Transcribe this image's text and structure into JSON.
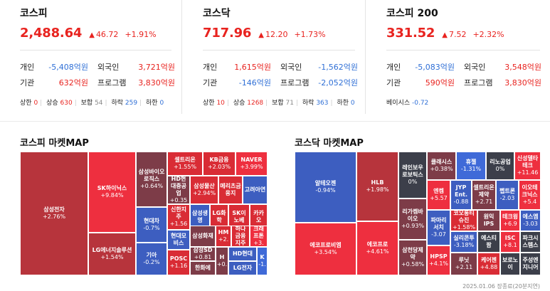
{
  "indices": [
    {
      "name": "코스피",
      "value": "2,488.64",
      "change": "46.72",
      "change_tri": "▲",
      "pct": "+1.91%",
      "flow": [
        {
          "label": "개인",
          "value": "-5,408억원",
          "label2": "외국인",
          "value2": "3,721억원"
        },
        {
          "label": "기관",
          "value": "632억원",
          "label2": "프로그램",
          "value2": "3,830억원"
        }
      ],
      "stats": {
        "upper_label": "상한",
        "upper": "0",
        "rise_label": "상승",
        "rise": "630",
        "flat_label": "보합",
        "flat": "54",
        "fall_label": "하락",
        "fall": "259",
        "lower_label": "하한",
        "lower": "0"
      }
    },
    {
      "name": "코스닥",
      "value": "717.96",
      "change": "12.20",
      "change_tri": "▲",
      "pct": "+1.73%",
      "flow": [
        {
          "label": "개인",
          "value": "1,615억원",
          "label2": "외국인",
          "value2": "-1,562억원"
        },
        {
          "label": "기관",
          "value": "-146억원",
          "label2": "프로그램",
          "value2": "-2,052억원"
        }
      ],
      "stats": {
        "upper_label": "상한",
        "upper": "10",
        "rise_label": "상승",
        "rise": "1268",
        "flat_label": "보합",
        "flat": "71",
        "fall_label": "하락",
        "fall": "363",
        "lower_label": "하한",
        "lower": "0"
      }
    },
    {
      "name": "코스피 200",
      "value": "331.52",
      "change": "7.52",
      "change_tri": "▲",
      "pct": "+2.32%",
      "flow": [
        {
          "label": "개인",
          "value": "-5,083억원",
          "label2": "외국인",
          "value2": "3,548억원"
        },
        {
          "label": "기관",
          "value": "590억원",
          "label2": "프로그램",
          "value2": "3,830억원"
        }
      ],
      "basis_label": "베이시스",
      "basis": "-0.72"
    }
  ],
  "kospi_map": {
    "title": "코스피 마켓MAP",
    "cells": [
      {
        "name": "삼성전자",
        "pct": "+2.76%"
      },
      {
        "name": "SK하이닉스",
        "pct": "+9.84%"
      },
      {
        "name": "LG에너지솔루션",
        "pct": "+1.54%"
      },
      {
        "name": "삼성바이오로직스",
        "pct": "+0.64%"
      },
      {
        "name": "현대차",
        "pct": "-0.7%"
      },
      {
        "name": "기아",
        "pct": "-0.2%"
      },
      {
        "name": "셀트리온",
        "pct": "+1.55%"
      },
      {
        "name": "KB금융",
        "pct": "+2.03%"
      },
      {
        "name": "NAVER",
        "pct": "+3.99%"
      },
      {
        "name": "HD현대중공업",
        "pct": "+0.35"
      },
      {
        "name": "삼성물산",
        "pct": "+2.94%"
      },
      {
        "name": "메리츠금융지",
        "pct": ""
      },
      {
        "name": "고려아연",
        "pct": ""
      },
      {
        "name": "신한지주",
        "pct": "+1.56"
      },
      {
        "name": "삼성생명",
        "pct": ""
      },
      {
        "name": "LG화학",
        "pct": ""
      },
      {
        "name": "SK이노베",
        "pct": ""
      },
      {
        "name": "카카오",
        "pct": ""
      },
      {
        "name": "현대모비스",
        "pct": ""
      },
      {
        "name": "삼성화재",
        "pct": ""
      },
      {
        "name": "HM",
        "pct": "+2."
      },
      {
        "name": "하나금융지주",
        "pct": ""
      },
      {
        "name": "크래프톤",
        "pct": "+3."
      },
      {
        "name": "삼성SD",
        "pct": "+0.81"
      },
      {
        "name": "H",
        "pct": "+0."
      },
      {
        "name": "HD현대",
        "pct": ""
      },
      {
        "name": "K",
        "pct": "-1."
      },
      {
        "name": "POSC",
        "pct": "+1.16"
      },
      {
        "name": "한화에",
        "pct": ""
      },
      {
        "name": "LG전자",
        "pct": ""
      }
    ]
  },
  "kosdaq_map": {
    "title": "코스닥 마켓MAP",
    "cells": [
      {
        "name": "알테오젠",
        "pct": "-0.94%"
      },
      {
        "name": "에코프로비엠",
        "pct": "+3.54%"
      },
      {
        "name": "HLB",
        "pct": "+1.98%"
      },
      {
        "name": "에코프로",
        "pct": "+4.61%"
      },
      {
        "name": "레인보우로보틱스",
        "pct": "0%"
      },
      {
        "name": "리가켐바이오",
        "pct": "+0.93%"
      },
      {
        "name": "삼천당제약",
        "pct": "+0.58%"
      },
      {
        "name": "클래시스",
        "pct": "+0.38%"
      },
      {
        "name": "휴젤",
        "pct": "-1.31%"
      },
      {
        "name": "리노공업",
        "pct": "0%"
      },
      {
        "name": "신성델타테크",
        "pct": "+11.46"
      },
      {
        "name": "엔켐",
        "pct": "+5.57"
      },
      {
        "name": "JYP Ent.",
        "pct": "-0.88"
      },
      {
        "name": "셀트리온제약",
        "pct": "+2.71"
      },
      {
        "name": "펩트론",
        "pct": "-2.03"
      },
      {
        "name": "이오테크닉스",
        "pct": "+5.4"
      },
      {
        "name": "파마리서치",
        "pct": "-3.07"
      },
      {
        "name": "코오롱티슈진",
        "pct": "+1.58%"
      },
      {
        "name": "원익IPS",
        "pct": ""
      },
      {
        "name": "테크윙",
        "pct": "+6.9"
      },
      {
        "name": "에스엠",
        "pct": "-3.03"
      },
      {
        "name": "실리콘투",
        "pct": "-3.18%"
      },
      {
        "name": "에스티팜",
        "pct": ""
      },
      {
        "name": "ISC",
        "pct": "+8.1"
      },
      {
        "name": "파크시스템스",
        "pct": ""
      },
      {
        "name": "HPSP",
        "pct": "+4.1%"
      },
      {
        "name": "루닛",
        "pct": "+2.11"
      },
      {
        "name": "케어젠",
        "pct": "+4.88"
      },
      {
        "name": "보로노이",
        "pct": ""
      },
      {
        "name": "주성엔지니어",
        "pct": ""
      }
    ]
  },
  "footer": "2025.01.06 장종료(20분지연)",
  "colors": {
    "up": "#e8231f",
    "down": "#2f6fd6"
  }
}
